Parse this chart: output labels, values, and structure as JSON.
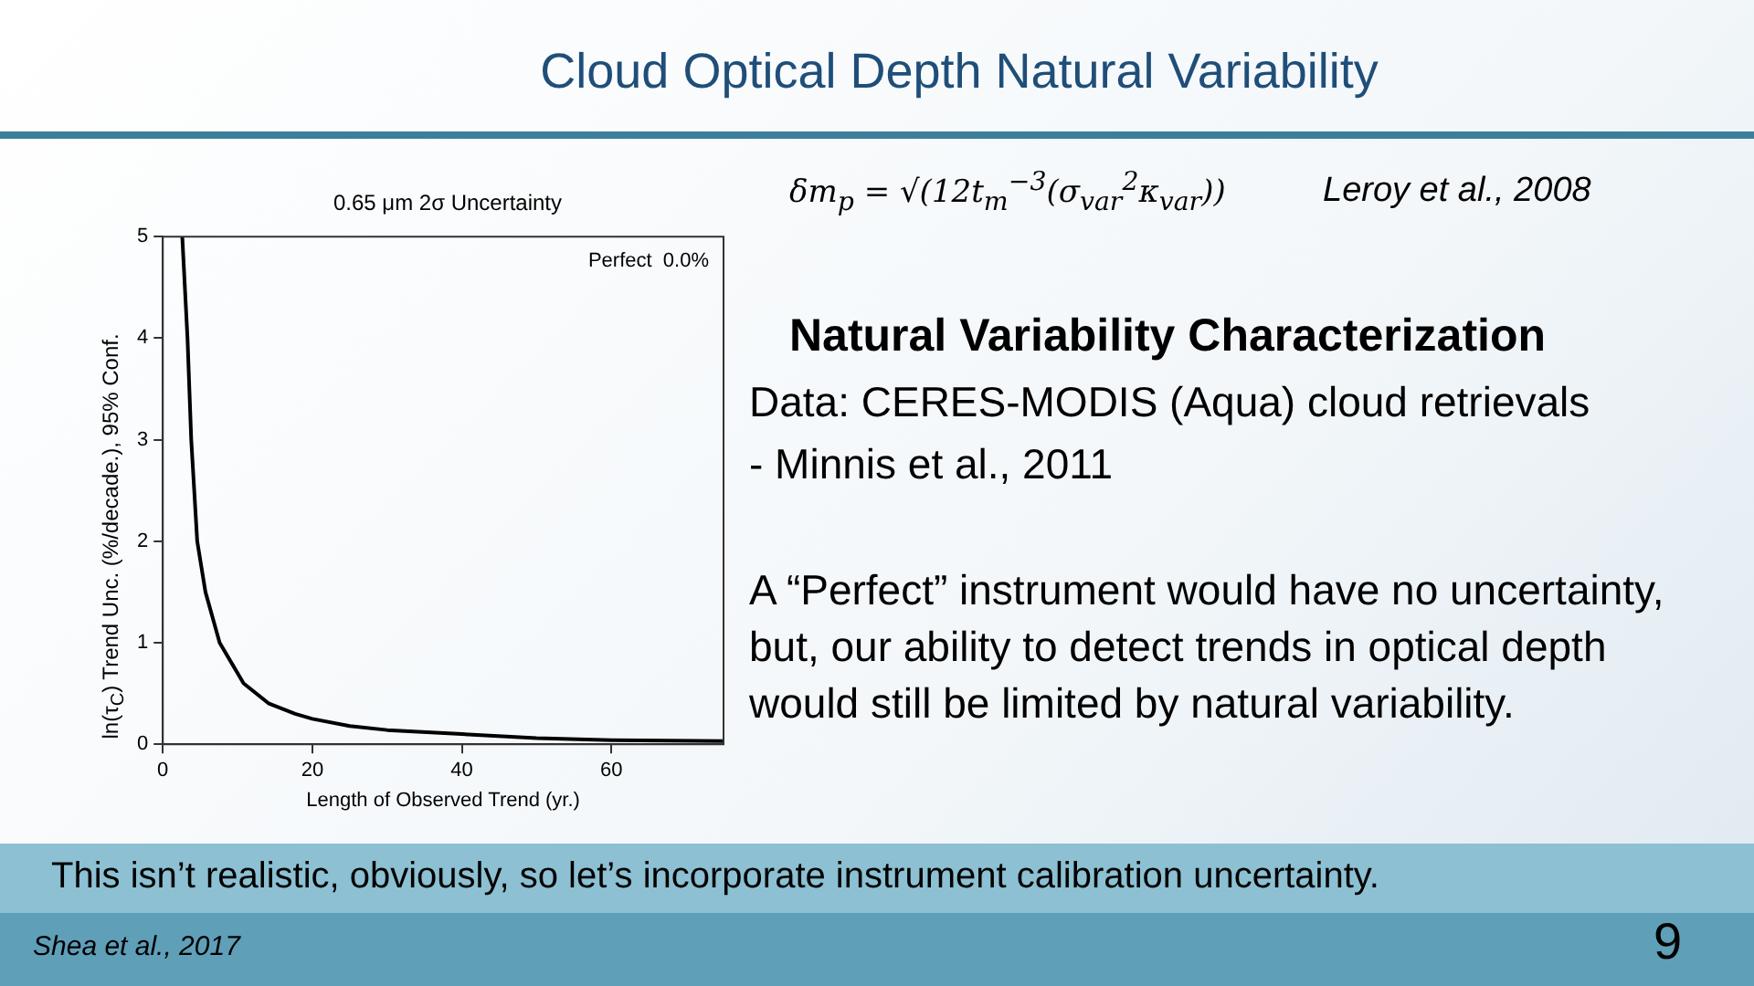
{
  "chart_data": {
    "type": "line",
    "title": "Cloud Optical Depth Natural Variability",
    "subtitle": "0.65 μm 2σ Uncertainty",
    "xlabel": "Length of Observed Trend (yr.)",
    "ylabel": "ln(τ$_{C}$) Trend Unc. (%/decade.), 95% Conf.",
    "x": [
      2.6,
      3.3,
      3.8,
      4.6,
      5.7,
      7.6,
      10.8,
      14.2,
      17.7,
      20,
      25,
      30,
      40,
      50,
      60,
      75
    ],
    "series": [
      {
        "color": "#000000",
        "values": [
          5,
          4,
          3,
          2,
          1.5,
          1,
          0.6,
          0.4,
          0.3,
          0.25,
          0.18,
          0.14,
          0.1,
          0.06,
          0.04,
          0.03
        ]
      }
    ],
    "xlim": [
      0,
      75
    ],
    "xticks": [
      0,
      20,
      40,
      60
    ],
    "ylim": [
      0,
      5
    ],
    "yticks": [
      0,
      1,
      2,
      3,
      4,
      5
    ],
    "marker": "none",
    "line_style": "solid",
    "grid": false,
    "legend": false,
    "annotations": [
      "Perfect  0.0%",
      "δm$_{p}$ = √(12t$_{m}$$^{−3}$(σ$_{var}$$^{2}$κ$_{var}$))",
      "Leroy et al., 2008",
      "Natural Variability Characterization",
      "Data: CERES-MODIS (Aqua) cloud retrievals",
      "- Minnis et al., 2011",
      "A “Perfect” instrument would have no uncertainty, but, our ability to detect trends in optical depth would still be limited by natural variability.",
      "This isn’t realistic, obviously, so let’s incorporate instrument calibration uncertainty.",
      "Shea et al., 2017",
      "9"
    ]
  }
}
